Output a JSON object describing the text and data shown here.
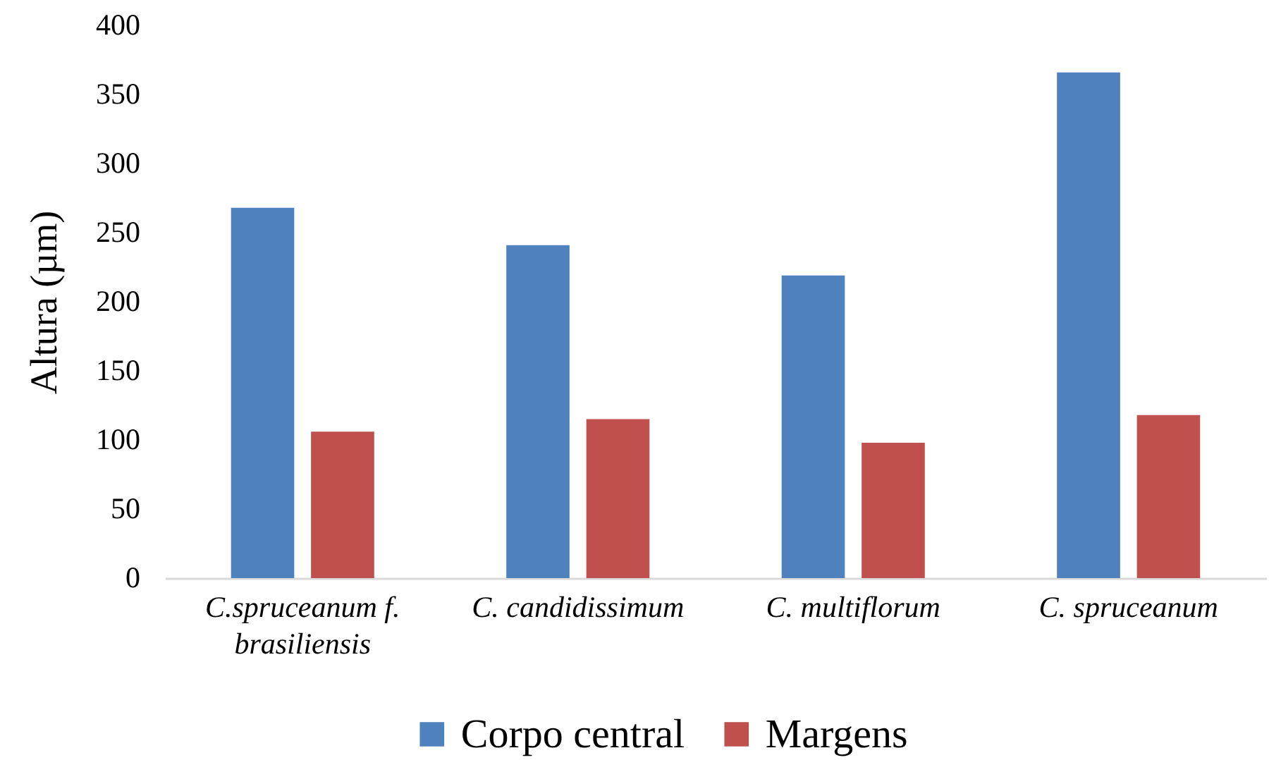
{
  "chart_data": {
    "type": "bar",
    "ylabel": "Altura (µm)",
    "categories": [
      "C.spruceanum f. brasiliensis",
      "C. candidissimum",
      "C. multiflorum",
      "C. spruceanum"
    ],
    "series": [
      {
        "name": "Corpo central",
        "color": "#4f81bd",
        "values": [
          268,
          241,
          219,
          366
        ]
      },
      {
        "name": "Margens",
        "color": "#c0504d",
        "values": [
          106,
          115,
          98,
          118
        ]
      }
    ],
    "ylim": [
      0,
      400
    ],
    "yticks": [
      0,
      50,
      100,
      150,
      200,
      250,
      300,
      350,
      400
    ],
    "grid": false,
    "legend": "bottom"
  }
}
